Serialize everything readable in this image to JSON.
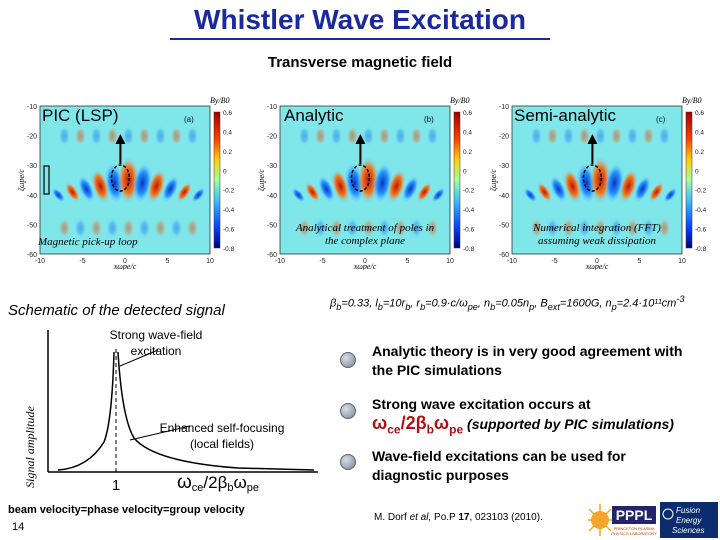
{
  "slide": {
    "title": "Whistler Wave Excitation",
    "subtitle": "Transverse magnetic field",
    "number": "14"
  },
  "panels": [
    {
      "title": "PIC (LSP)",
      "tag": "(a)",
      "colorbar_label": "By/B0",
      "note": "Magnetic pick-up loop",
      "ylabel": "ζωpe/c",
      "xlabel": "xωpe/c",
      "xticks": [
        "-10",
        "-5",
        "0",
        "5",
        "10"
      ],
      "yticks": [
        "-10",
        "-20",
        "-30",
        "-40",
        "-50",
        "-60"
      ],
      "cbticks": [
        "0.6",
        "0.4",
        "0.2",
        "0",
        "-0.2",
        "-0.4",
        "-0.6",
        "-0.8"
      ]
    },
    {
      "title": "Analytic",
      "tag": "(b)",
      "colorbar_label": "By/B0",
      "note": "Analytical treatment of poles in the complex plane",
      "ylabel": "ζωpe/c",
      "xlabel": "xωpe/c",
      "xticks": [
        "-10",
        "-5",
        "0",
        "5",
        "10"
      ],
      "yticks": [
        "-10",
        "-20",
        "-30",
        "-40",
        "-50",
        "-60"
      ],
      "cbticks": [
        "0.6",
        "0.4",
        "0.2",
        "0",
        "-0.2",
        "-0.4",
        "-0.6",
        "-0.8"
      ]
    },
    {
      "title": "Semi-analytic",
      "tag": "(c)",
      "colorbar_label": "By/B0",
      "note": "Numerical integration (FFT) assuming weak dissipation",
      "ylabel": "ζωpe/c",
      "xlabel": "xωpe/c",
      "xticks": [
        "-10",
        "-5",
        "0",
        "5",
        "10"
      ],
      "yticks": [
        "-10",
        "-20",
        "-30",
        "-40",
        "-50",
        "-60"
      ],
      "cbticks": [
        "0.6",
        "0.4",
        "0.2",
        "0",
        "-0.2",
        "-0.4",
        "-0.6",
        "-0.8"
      ]
    }
  ],
  "schematic": {
    "title": "Schematic of the detected signal",
    "ylabel": "Signal amplitude",
    "label_strong": "Strong wave-field excitation",
    "label_focus": "Enhanced self-focusing (local fields)",
    "tick_one": "1",
    "tick_res": "ωce/2βbωpe",
    "footer": "beam velocity=phase velocity=group velocity"
  },
  "params": "βb=0.33, lb=10rb, rb=0.9·c/ωpe, nb=0.05np, Bext=1600G, np=2.4·10¹¹cm-3",
  "bullets": [
    {
      "text": "Analytic theory is in very good agreement with the PIC simulations"
    },
    {
      "text_pre": "Strong wave excitation occurs at",
      "formula": "ωce/2βbωpe",
      "text_post": "(supported by PIC simulations)"
    },
    {
      "text": "Wave-field excitations can be used for diagnostic purposes"
    }
  ],
  "reference": {
    "authors": "M. Dorf",
    "etal": "et al,",
    "journal": "Po.P",
    "volume": "17",
    "rest": ", 023103 (2010)."
  },
  "logos": {
    "pppl": "PPPL",
    "pppl_sub": "PRINCETON PLASMA PHYSICS LABORATORY",
    "fes": "Fusion Energy Sciences"
  },
  "colors": {
    "title": "#1a2a9c",
    "formula": "#b01010"
  }
}
